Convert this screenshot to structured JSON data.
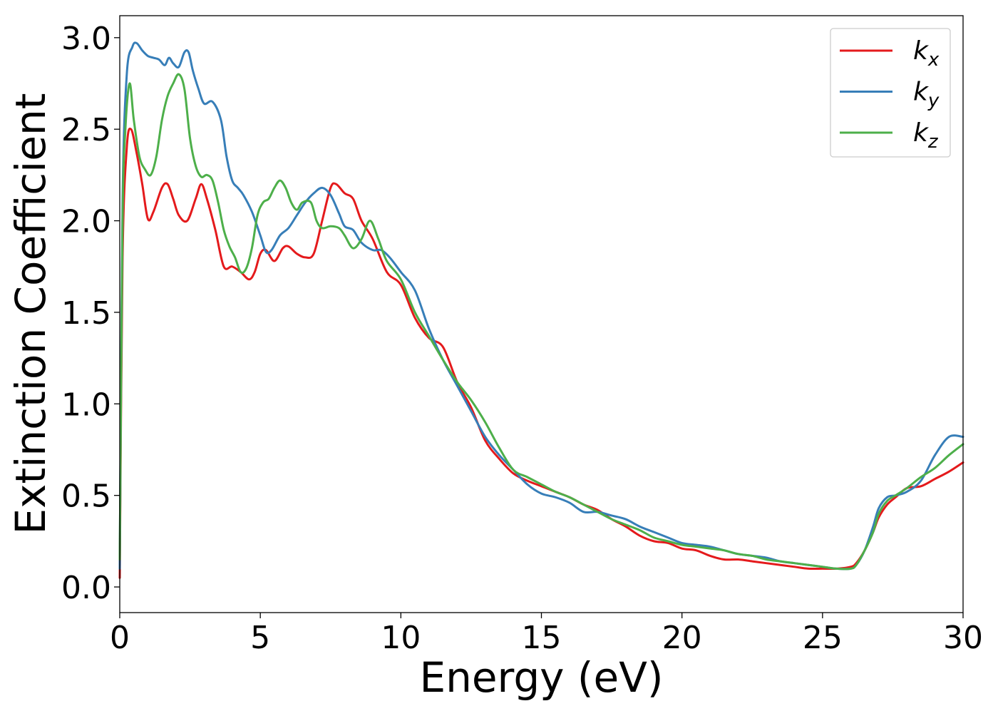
{
  "chart_data": {
    "type": "line",
    "title": "",
    "xlabel": "Energy (eV)",
    "ylabel": "Extinction Coefficient",
    "xlim": [
      0,
      30
    ],
    "ylim": [
      -0.14,
      3.12
    ],
    "xticks": [
      0,
      5,
      10,
      15,
      20,
      25,
      30
    ],
    "xtick_labels": [
      "0",
      "5",
      "10",
      "15",
      "20",
      "25",
      "30"
    ],
    "yticks": [
      0.0,
      0.5,
      1.0,
      1.5,
      2.0,
      2.5,
      3.0
    ],
    "ytick_labels": [
      "0.0",
      "0.5",
      "1.0",
      "1.5",
      "2.0",
      "2.5",
      "3.0"
    ],
    "grid": false,
    "legend_position": "top-right",
    "series": [
      {
        "name": "k_x",
        "label_base": "k",
        "label_sub": "x",
        "color": "#e41a1c",
        "x": [
          0,
          0.1,
          0.25,
          0.4,
          0.6,
          0.8,
          1.0,
          1.2,
          1.5,
          1.7,
          1.9,
          2.1,
          2.4,
          2.7,
          2.9,
          3.1,
          3.4,
          3.7,
          4.0,
          4.3,
          4.6,
          4.8,
          5.0,
          5.2,
          5.5,
          5.8,
          6.0,
          6.3,
          6.6,
          6.9,
          7.2,
          7.5,
          7.7,
          8.0,
          8.3,
          8.6,
          9.0,
          9.5,
          10.0,
          10.5,
          11.0,
          11.5,
          12.0,
          12.5,
          13.0,
          13.5,
          14.0,
          14.5,
          15.0,
          15.5,
          16.0,
          16.5,
          17.0,
          17.5,
          18.0,
          18.5,
          19.0,
          19.5,
          20.0,
          20.5,
          21.0,
          21.5,
          22.0,
          22.5,
          23.0,
          23.5,
          24.0,
          24.5,
          25.0,
          25.5,
          26.0,
          26.2,
          26.5,
          26.8,
          27.0,
          27.3,
          27.6,
          28.0,
          28.5,
          29.0,
          29.5,
          30.0
        ],
        "y": [
          0.05,
          1.8,
          2.4,
          2.5,
          2.37,
          2.2,
          2.01,
          2.05,
          2.18,
          2.2,
          2.12,
          2.03,
          2.0,
          2.12,
          2.2,
          2.12,
          1.95,
          1.75,
          1.75,
          1.72,
          1.68,
          1.72,
          1.82,
          1.84,
          1.78,
          1.85,
          1.86,
          1.82,
          1.8,
          1.82,
          2.0,
          2.18,
          2.2,
          2.15,
          2.12,
          2.0,
          1.9,
          1.72,
          1.65,
          1.47,
          1.36,
          1.31,
          1.12,
          0.98,
          0.8,
          0.7,
          0.62,
          0.58,
          0.55,
          0.52,
          0.49,
          0.45,
          0.42,
          0.37,
          0.33,
          0.28,
          0.25,
          0.24,
          0.21,
          0.2,
          0.17,
          0.15,
          0.15,
          0.14,
          0.13,
          0.12,
          0.11,
          0.1,
          0.1,
          0.1,
          0.11,
          0.13,
          0.2,
          0.3,
          0.38,
          0.45,
          0.49,
          0.54,
          0.55,
          0.59,
          0.63,
          0.68
        ]
      },
      {
        "name": "k_y",
        "label_base": "k",
        "label_sub": "y",
        "color": "#377eb8",
        "x": [
          0,
          0.1,
          0.25,
          0.45,
          0.6,
          0.8,
          1.0,
          1.2,
          1.4,
          1.6,
          1.75,
          1.9,
          2.1,
          2.3,
          2.45,
          2.6,
          2.8,
          3.0,
          3.3,
          3.6,
          3.8,
          4.0,
          4.2,
          4.4,
          4.7,
          5.0,
          5.2,
          5.4,
          5.7,
          6.0,
          6.3,
          6.6,
          6.9,
          7.2,
          7.5,
          7.8,
          8.0,
          8.3,
          8.6,
          9.0,
          9.3,
          9.6,
          10.0,
          10.5,
          11.0,
          11.5,
          12.0,
          12.5,
          13.0,
          13.5,
          14.0,
          14.5,
          15.0,
          15.5,
          16.0,
          16.5,
          17.0,
          17.5,
          18.0,
          18.5,
          19.0,
          19.5,
          20.0,
          20.5,
          21.0,
          21.5,
          22.0,
          22.5,
          23.0,
          23.5,
          24.0,
          24.5,
          25.0,
          25.5,
          26.0,
          26.2,
          26.5,
          26.8,
          27.0,
          27.3,
          27.6,
          28.0,
          28.5,
          29.0,
          29.5,
          30.0
        ],
        "y": [
          0.1,
          2.1,
          2.8,
          2.95,
          2.97,
          2.93,
          2.9,
          2.89,
          2.88,
          2.85,
          2.89,
          2.86,
          2.84,
          2.92,
          2.92,
          2.82,
          2.72,
          2.64,
          2.65,
          2.55,
          2.35,
          2.22,
          2.18,
          2.14,
          2.05,
          1.92,
          1.83,
          1.84,
          1.92,
          1.96,
          2.03,
          2.1,
          2.15,
          2.18,
          2.14,
          2.04,
          1.97,
          1.95,
          1.88,
          1.84,
          1.84,
          1.8,
          1.72,
          1.62,
          1.41,
          1.24,
          1.1,
          0.96,
          0.82,
          0.72,
          0.64,
          0.56,
          0.51,
          0.49,
          0.46,
          0.41,
          0.41,
          0.39,
          0.37,
          0.33,
          0.3,
          0.27,
          0.24,
          0.23,
          0.22,
          0.2,
          0.18,
          0.17,
          0.16,
          0.14,
          0.13,
          0.12,
          0.11,
          0.1,
          0.1,
          0.12,
          0.2,
          0.33,
          0.43,
          0.49,
          0.5,
          0.52,
          0.58,
          0.72,
          0.82,
          0.82
        ]
      },
      {
        "name": "k_z",
        "label_base": "k",
        "label_sub": "z",
        "color": "#4daf4a",
        "x": [
          0,
          0.1,
          0.2,
          0.35,
          0.5,
          0.7,
          0.9,
          1.1,
          1.3,
          1.5,
          1.7,
          1.9,
          2.1,
          2.3,
          2.5,
          2.7,
          2.9,
          3.1,
          3.3,
          3.5,
          3.7,
          3.9,
          4.1,
          4.3,
          4.5,
          4.7,
          4.9,
          5.1,
          5.3,
          5.5,
          5.7,
          5.9,
          6.1,
          6.3,
          6.5,
          6.8,
          7.0,
          7.2,
          7.5,
          7.8,
          8.0,
          8.3,
          8.6,
          8.9,
          9.2,
          9.5,
          10.0,
          10.5,
          11.0,
          11.5,
          12.0,
          12.5,
          13.0,
          13.5,
          14.0,
          14.5,
          15.0,
          15.5,
          16.0,
          16.5,
          17.0,
          17.5,
          18.0,
          18.5,
          19.0,
          19.5,
          20.0,
          20.5,
          21.0,
          21.5,
          22.0,
          22.5,
          23.0,
          23.5,
          24.0,
          24.5,
          25.0,
          25.5,
          26.0,
          26.2,
          26.5,
          26.8,
          27.0,
          27.3,
          27.6,
          28.0,
          28.5,
          29.0,
          29.5,
          30.0
        ],
        "y": [
          0.15,
          2.0,
          2.5,
          2.75,
          2.55,
          2.35,
          2.28,
          2.25,
          2.35,
          2.55,
          2.68,
          2.75,
          2.8,
          2.72,
          2.45,
          2.3,
          2.24,
          2.25,
          2.22,
          2.1,
          1.95,
          1.86,
          1.8,
          1.72,
          1.74,
          1.85,
          2.03,
          2.1,
          2.12,
          2.18,
          2.22,
          2.18,
          2.1,
          2.06,
          2.1,
          2.1,
          2.0,
          1.96,
          1.97,
          1.96,
          1.92,
          1.85,
          1.9,
          2.0,
          1.9,
          1.78,
          1.68,
          1.5,
          1.37,
          1.24,
          1.12,
          1.02,
          0.9,
          0.76,
          0.64,
          0.6,
          0.56,
          0.52,
          0.49,
          0.45,
          0.41,
          0.37,
          0.34,
          0.31,
          0.27,
          0.25,
          0.23,
          0.22,
          0.21,
          0.2,
          0.18,
          0.17,
          0.15,
          0.14,
          0.13,
          0.12,
          0.11,
          0.1,
          0.1,
          0.12,
          0.2,
          0.3,
          0.4,
          0.47,
          0.5,
          0.54,
          0.6,
          0.65,
          0.72,
          0.78
        ]
      }
    ]
  }
}
